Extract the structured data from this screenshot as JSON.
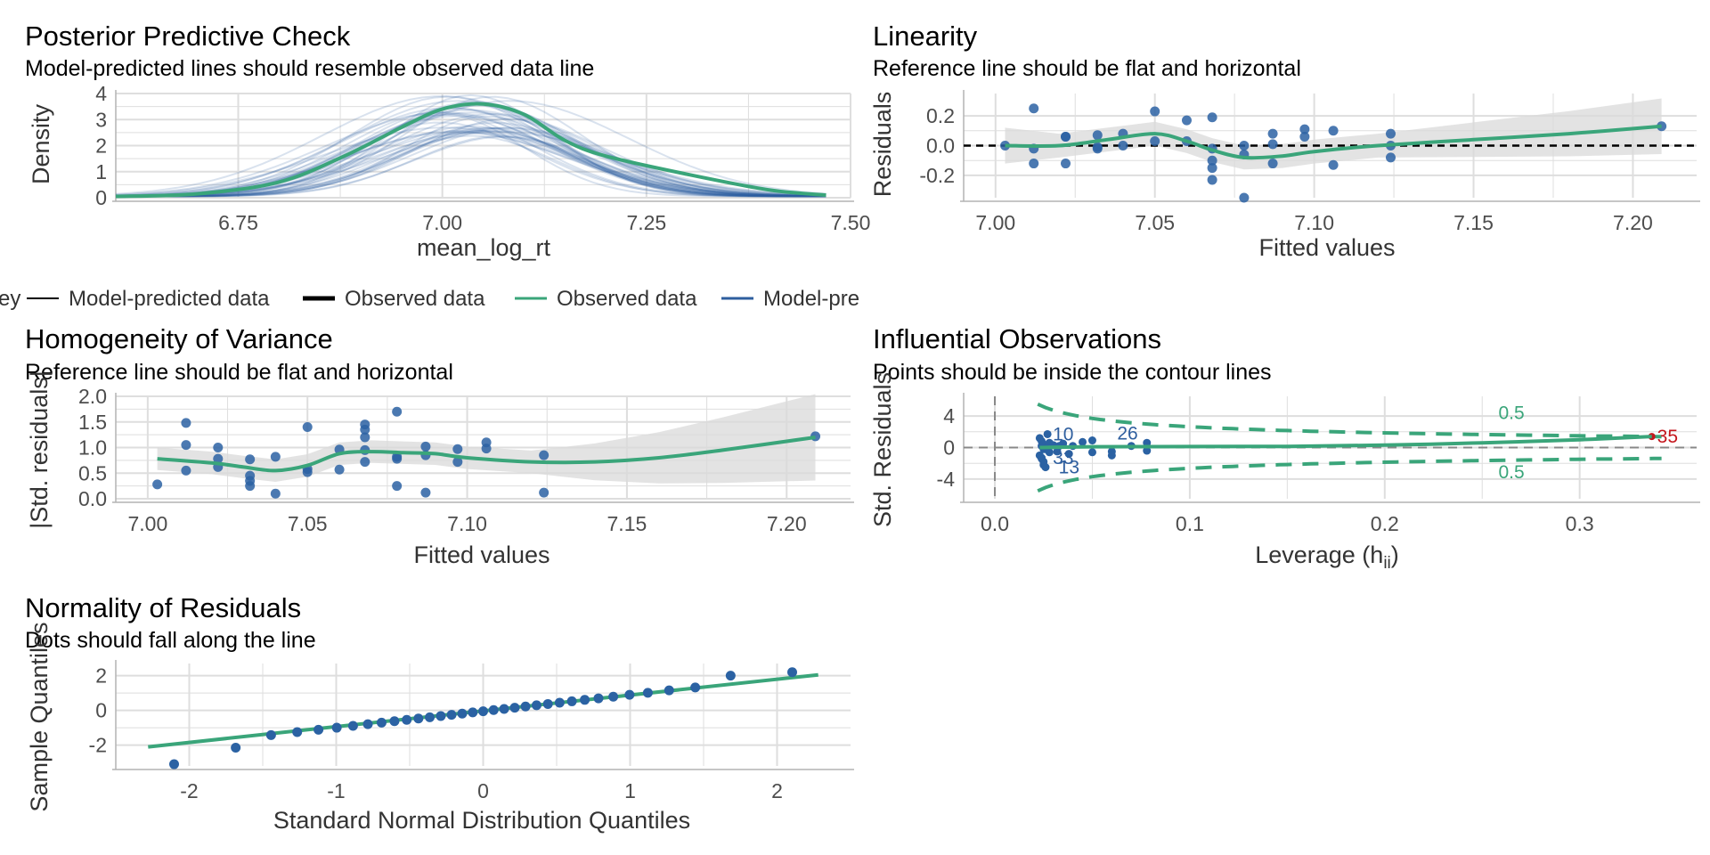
{
  "colors": {
    "green": "#3aa57a",
    "blue": "#2e5e9e",
    "point": "#2b62a3",
    "red": "#c4161c",
    "grid": "#dedede",
    "band": "#d9d9d9"
  },
  "legend": {
    "cut_prefix": "ey",
    "items": [
      {
        "label": "Model-predicted data",
        "style": "thin-black"
      },
      {
        "label": "Observed data",
        "style": "thick-black"
      },
      {
        "label": "Observed data",
        "style": "green"
      },
      {
        "label": "Model-pre",
        "style": "blue"
      }
    ]
  },
  "chart_data": [
    {
      "id": "ppc",
      "type": "line",
      "title": "Posterior Predictive Check",
      "subtitle": "Model-predicted lines should resemble observed data line",
      "xlabel": "mean_log_rt",
      "ylabel": "Density",
      "xlim": [
        6.6,
        7.5
      ],
      "ylim": [
        0,
        4
      ],
      "xticks": [
        6.75,
        7.0,
        7.25,
        7.5
      ],
      "xtick_labels": [
        "6.75",
        "7.00",
        "7.25",
        "7.50"
      ],
      "yticks": [
        0,
        1,
        2,
        3,
        4
      ],
      "ytick_labels": [
        "0",
        "1",
        "2",
        "3",
        "4"
      ],
      "grid": true,
      "series": [
        {
          "name": "Observed data",
          "x": [
            6.6,
            6.7,
            6.8,
            6.88,
            6.95,
            7.0,
            7.05,
            7.1,
            7.15,
            7.2,
            7.3,
            7.4,
            7.47
          ],
          "y": [
            0.05,
            0.15,
            0.6,
            1.6,
            2.7,
            3.4,
            3.6,
            3.2,
            2.2,
            1.6,
            0.9,
            0.3,
            0.1
          ]
        },
        {
          "name": "Model-predicted data",
          "center": 7.04,
          "sd": 0.12,
          "peak": 3.0,
          "draws": 40
        }
      ]
    },
    {
      "id": "linearity",
      "type": "scatter",
      "title": "Linearity",
      "subtitle": "Reference line should be flat and horizontal",
      "xlabel": "Fitted values",
      "ylabel": "Residuals",
      "xlim": [
        6.99,
        7.22
      ],
      "ylim": [
        -0.35,
        0.35
      ],
      "xticks": [
        7.0,
        7.05,
        7.1,
        7.15,
        7.2
      ],
      "xtick_labels": [
        "7.00",
        "7.05",
        "7.10",
        "7.15",
        "7.20"
      ],
      "yticks": [
        -0.2,
        0.0,
        0.2
      ],
      "ytick_labels": [
        "-0.2",
        "0.0",
        "0.2"
      ],
      "grid": true,
      "x": [
        7.003,
        7.012,
        7.012,
        7.012,
        7.022,
        7.022,
        7.022,
        7.032,
        7.032,
        7.032,
        7.04,
        7.04,
        7.05,
        7.05,
        7.06,
        7.06,
        7.068,
        7.068,
        7.068,
        7.068,
        7.068,
        7.078,
        7.078,
        7.078,
        7.087,
        7.087,
        7.087,
        7.097,
        7.097,
        7.106,
        7.106,
        7.124,
        7.124,
        7.124,
        7.209
      ],
      "y": [
        0.0,
        0.25,
        -0.12,
        -0.02,
        0.06,
        0.06,
        -0.12,
        0.07,
        -0.01,
        -0.02,
        0.08,
        0.0,
        0.23,
        0.03,
        0.17,
        0.03,
        0.19,
        -0.02,
        -0.1,
        -0.15,
        -0.23,
        -0.06,
        -0.35,
        0.0,
        0.08,
        -0.12,
        0.01,
        0.11,
        0.06,
        0.1,
        -0.13,
        0.08,
        0.0,
        -0.08,
        0.13
      ],
      "smooth": {
        "x": [
          7.003,
          7.02,
          7.035,
          7.05,
          7.06,
          7.068,
          7.078,
          7.09,
          7.1,
          7.12,
          7.15,
          7.18,
          7.209
        ],
        "y": [
          0.0,
          0.0,
          0.04,
          0.08,
          0.03,
          -0.03,
          -0.08,
          -0.07,
          -0.04,
          0.0,
          0.04,
          0.08,
          0.13
        ]
      },
      "reference_y": 0
    },
    {
      "id": "homogeneity",
      "type": "scatter",
      "title": "Homogeneity of Variance",
      "subtitle": "Reference line should be flat and horizontal",
      "xlabel": "Fitted values",
      "ylabel": "|Std. residuals|",
      "xlim": [
        6.99,
        7.22
      ],
      "ylim": [
        0,
        2.0
      ],
      "xticks": [
        7.0,
        7.05,
        7.1,
        7.15,
        7.2
      ],
      "xtick_labels": [
        "7.00",
        "7.05",
        "7.10",
        "7.15",
        "7.20"
      ],
      "yticks": [
        0.0,
        0.5,
        1.0,
        1.5,
        2.0
      ],
      "ytick_labels": [
        "0.0",
        "0.5",
        "1.0",
        "1.5",
        "2.0"
      ],
      "grid": true,
      "x": [
        7.003,
        7.012,
        7.012,
        7.012,
        7.022,
        7.022,
        7.022,
        7.032,
        7.032,
        7.032,
        7.032,
        7.04,
        7.04,
        7.05,
        7.05,
        7.05,
        7.06,
        7.06,
        7.068,
        7.068,
        7.068,
        7.068,
        7.068,
        7.078,
        7.078,
        7.078,
        7.078,
        7.087,
        7.087,
        7.087,
        7.097,
        7.097,
        7.106,
        7.106,
        7.124,
        7.124,
        7.209
      ],
      "y": [
        0.28,
        1.48,
        1.05,
        0.55,
        1.0,
        0.78,
        0.62,
        0.77,
        0.45,
        0.35,
        0.25,
        0.82,
        0.1,
        1.4,
        0.58,
        0.52,
        0.96,
        0.57,
        1.45,
        1.35,
        1.2,
        0.95,
        0.72,
        1.7,
        0.82,
        0.78,
        0.25,
        1.02,
        0.85,
        0.12,
        0.97,
        0.72,
        1.1,
        0.98,
        0.85,
        0.12,
        1.22
      ],
      "smooth": {
        "x": [
          7.003,
          7.02,
          7.03,
          7.04,
          7.05,
          7.06,
          7.07,
          7.08,
          7.09,
          7.1,
          7.12,
          7.14,
          7.16,
          7.18,
          7.209
        ],
        "y": [
          0.78,
          0.7,
          0.62,
          0.55,
          0.65,
          0.88,
          0.92,
          0.9,
          0.88,
          0.8,
          0.72,
          0.72,
          0.8,
          0.95,
          1.2
        ]
      }
    },
    {
      "id": "influential",
      "type": "scatter",
      "title": "Influential Observations",
      "subtitle": "Points should be inside the contour lines",
      "xlabel": "Leverage (h",
      "xlabel_sub": "ii",
      "xlabel_close": ")",
      "ylabel": "Std. Residuals",
      "xlim": [
        -0.016,
        0.36
      ],
      "ylim": [
        -6.5,
        6.5
      ],
      "xticks": [
        0.0,
        0.1,
        0.2,
        0.3
      ],
      "xtick_labels": [
        "0.0",
        "0.1",
        "0.2",
        "0.3"
      ],
      "yticks": [
        -4,
        0,
        4
      ],
      "ytick_labels": [
        "-4",
        "0",
        "4"
      ],
      "grid": true,
      "x": [
        0.023,
        0.024,
        0.025,
        0.026,
        0.027,
        0.028,
        0.023,
        0.024,
        0.025,
        0.024,
        0.025,
        0.028,
        0.03,
        0.032,
        0.035,
        0.038,
        0.04,
        0.045,
        0.05,
        0.05,
        0.06,
        0.06,
        0.07,
        0.078,
        0.078,
        0.027,
        0.024,
        0.025,
        0.026,
        0.033,
        0.337
      ],
      "y": [
        1.2,
        0.8,
        0.4,
        0.0,
        -0.3,
        -0.6,
        -1.0,
        -1.4,
        -1.8,
        0.2,
        -0.2,
        0.6,
        0.3,
        -0.5,
        0.5,
        -0.8,
        0.2,
        0.7,
        0.9,
        -0.6,
        -0.5,
        -1.0,
        0.2,
        0.6,
        -0.4,
        1.7,
        -1.3,
        -2.2,
        -2.5,
        0.2,
        1.4
      ],
      "labeled_points": [
        {
          "text": "10",
          "x": 0.027,
          "y": 1.7,
          "color": "#2e5e9e"
        },
        {
          "text": "26",
          "x": 0.06,
          "y": 1.8,
          "color": "#2e5e9e"
        },
        {
          "text": "33",
          "x": 0.027,
          "y": -1.3,
          "color": "#2e5e9e"
        },
        {
          "text": "13",
          "x": 0.03,
          "y": -2.5,
          "color": "#2e5e9e"
        },
        {
          "text": "35",
          "x": 0.337,
          "y": 1.4,
          "color": "#c4161c"
        }
      ],
      "contour_label": "0.5",
      "smooth": {
        "x": [
          0.023,
          0.05,
          0.1,
          0.15,
          0.2,
          0.25,
          0.3,
          0.337
        ],
        "y": [
          0.0,
          0.1,
          0.12,
          0.15,
          0.3,
          0.6,
          1.0,
          1.4
        ]
      }
    },
    {
      "id": "normality",
      "type": "scatter",
      "title": "Normality of Residuals",
      "subtitle": "Dots should fall along the line",
      "xlabel": "Standard Normal Distribution Quantiles",
      "ylabel": "Sample Quantiles",
      "xlim": [
        -2.5,
        2.5
      ],
      "ylim": [
        -3.2,
        2.7
      ],
      "xticks": [
        -2,
        -1,
        0,
        1,
        2
      ],
      "xtick_labels": [
        "-2",
        "-1",
        "0",
        "1",
        "2"
      ],
      "yticks": [
        -2,
        0,
        2
      ],
      "ytick_labels": [
        "-2",
        "0",
        "2"
      ],
      "grid": true,
      "qq": {
        "n": 35,
        "slope": 0.95,
        "min_y": -3.1,
        "max_y": 2.2
      },
      "line": {
        "x": [
          -2.28,
          2.28
        ],
        "y": [
          -2.1,
          2.05
        ]
      }
    }
  ]
}
